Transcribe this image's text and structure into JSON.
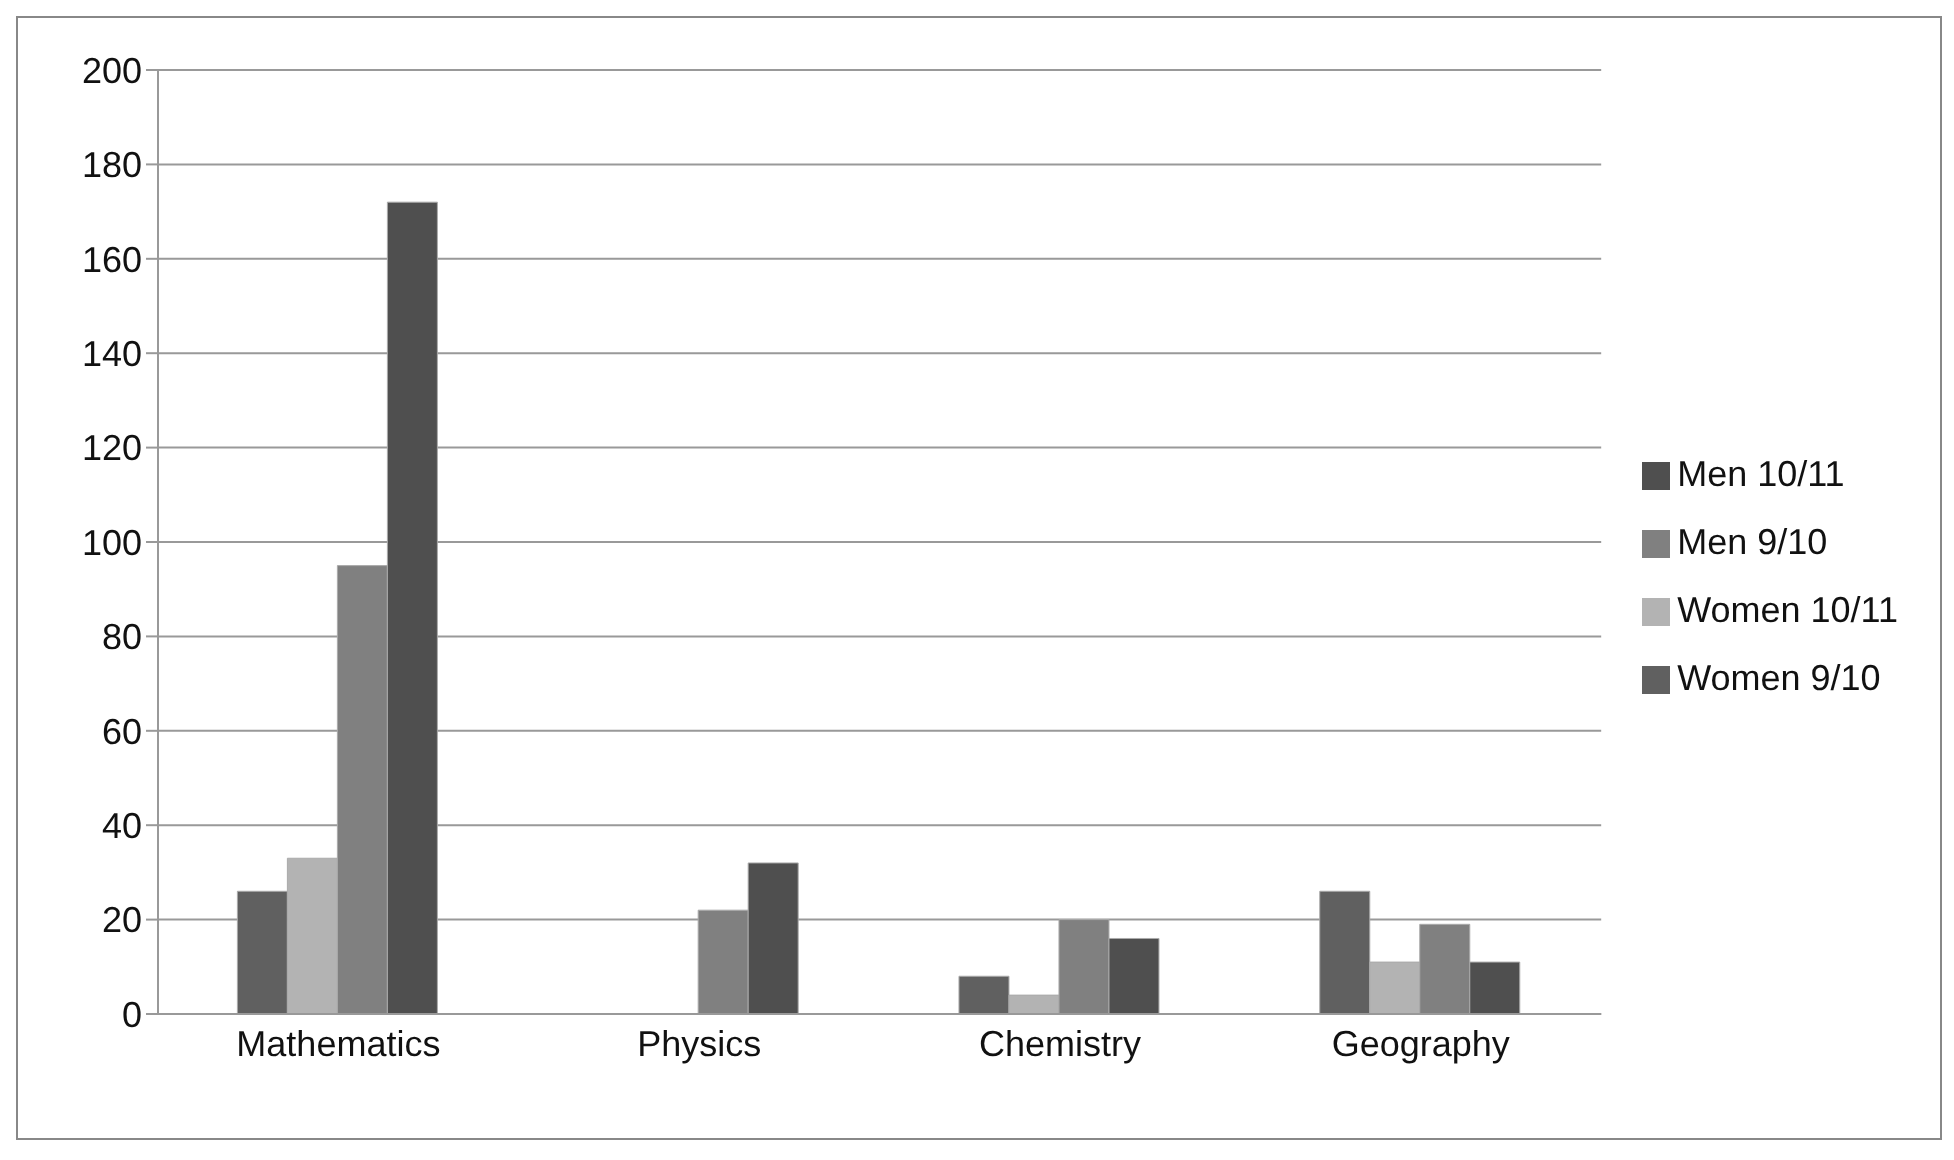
{
  "chart_data": {
    "type": "bar",
    "categories": [
      "Mathematics",
      "Physics",
      "Chemistry",
      "Geography"
    ],
    "series": [
      {
        "name": "Women 9/10",
        "color": "#606060",
        "values": [
          26,
          0,
          8,
          26
        ]
      },
      {
        "name": "Women 10/11",
        "color": "#b3b3b3",
        "values": [
          33,
          0,
          4,
          11
        ]
      },
      {
        "name": "Men 9/10",
        "color": "#808080",
        "values": [
          95,
          22,
          20,
          19
        ]
      },
      {
        "name": "Men 10/11",
        "color": "#4f4f4f",
        "values": [
          172,
          32,
          16,
          11
        ]
      }
    ],
    "ylim": [
      0,
      200
    ],
    "yticks": [
      0,
      20,
      40,
      60,
      80,
      100,
      120,
      140,
      160,
      180,
      200
    ],
    "grid": "y",
    "legend": "right"
  }
}
